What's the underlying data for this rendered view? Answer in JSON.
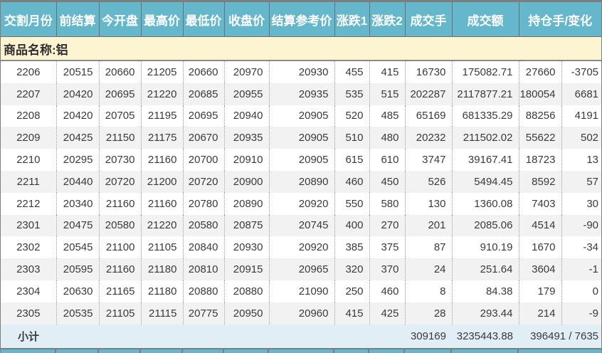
{
  "header": {
    "columns": [
      "交割月份",
      "前结算",
      "今开盘",
      "最高价",
      "最低价",
      "收盘价",
      "结算参考价",
      "涨跌1",
      "涨跌2",
      "成交手",
      "成交额",
      "持仓手/变化"
    ]
  },
  "product": {
    "label": "商品名称:铝"
  },
  "table": {
    "column_keys": [
      "month",
      "prev_settlement",
      "open",
      "high",
      "low",
      "close",
      "settlement_ref",
      "change1",
      "change2",
      "volume",
      "turnover",
      "open_interest",
      "oi_change"
    ],
    "rows": [
      [
        "2206",
        "20515",
        "20660",
        "21205",
        "20660",
        "20970",
        "20930",
        "455",
        "415",
        "16730",
        "175082.71",
        "27660",
        "-3705"
      ],
      [
        "2207",
        "20420",
        "20695",
        "21220",
        "20685",
        "20955",
        "20935",
        "535",
        "515",
        "202287",
        "2117877.21",
        "180054",
        "6681"
      ],
      [
        "2208",
        "20420",
        "20705",
        "21195",
        "20695",
        "20940",
        "20905",
        "520",
        "485",
        "65169",
        "681335.29",
        "88256",
        "4191"
      ],
      [
        "2209",
        "20425",
        "21150",
        "21175",
        "20670",
        "20935",
        "20905",
        "510",
        "480",
        "20232",
        "211502.02",
        "55622",
        "502"
      ],
      [
        "2210",
        "20295",
        "20730",
        "21160",
        "20700",
        "20910",
        "20905",
        "615",
        "610",
        "3747",
        "39167.41",
        "18723",
        "13"
      ],
      [
        "2211",
        "20440",
        "20720",
        "21200",
        "20720",
        "20900",
        "20890",
        "460",
        "450",
        "526",
        "5494.45",
        "8592",
        "57"
      ],
      [
        "2212",
        "20340",
        "21160",
        "21160",
        "20780",
        "20890",
        "20920",
        "550",
        "580",
        "130",
        "1360.08",
        "7403",
        "30"
      ],
      [
        "2301",
        "20475",
        "20580",
        "21220",
        "20580",
        "20875",
        "20745",
        "400",
        "270",
        "201",
        "2085.06",
        "4514",
        "-90"
      ],
      [
        "2302",
        "20545",
        "21100",
        "21105",
        "20840",
        "20930",
        "20920",
        "385",
        "375",
        "87",
        "910.19",
        "1670",
        "-34"
      ],
      [
        "2303",
        "20595",
        "21160",
        "21180",
        "20810",
        "20915",
        "20965",
        "320",
        "370",
        "24",
        "251.64",
        "3604",
        "-1"
      ],
      [
        "2304",
        "20630",
        "21165",
        "21180",
        "20880",
        "20880",
        "21090",
        "250",
        "460",
        "8",
        "84.38",
        "179",
        "0"
      ],
      [
        "2305",
        "20535",
        "21105",
        "21115",
        "20775",
        "20950",
        "20960",
        "415",
        "425",
        "28",
        "293.44",
        "214",
        "-9"
      ]
    ]
  },
  "subtotal": {
    "label": "小计",
    "volume": "309169",
    "turnover": "3235443.88",
    "open_interest": "396491 / 7635"
  },
  "colors": {
    "header_bg": "#65b8cc",
    "product_row_bg": "#fdf5d1",
    "subtotal_bg": "#e1eef5",
    "row_alt_bg": "#f2f2f2",
    "grid_dotted": "#999999",
    "outer_border": "#7d7d7d",
    "header_text": "#ffffff",
    "body_text": "#3a3a3a"
  }
}
